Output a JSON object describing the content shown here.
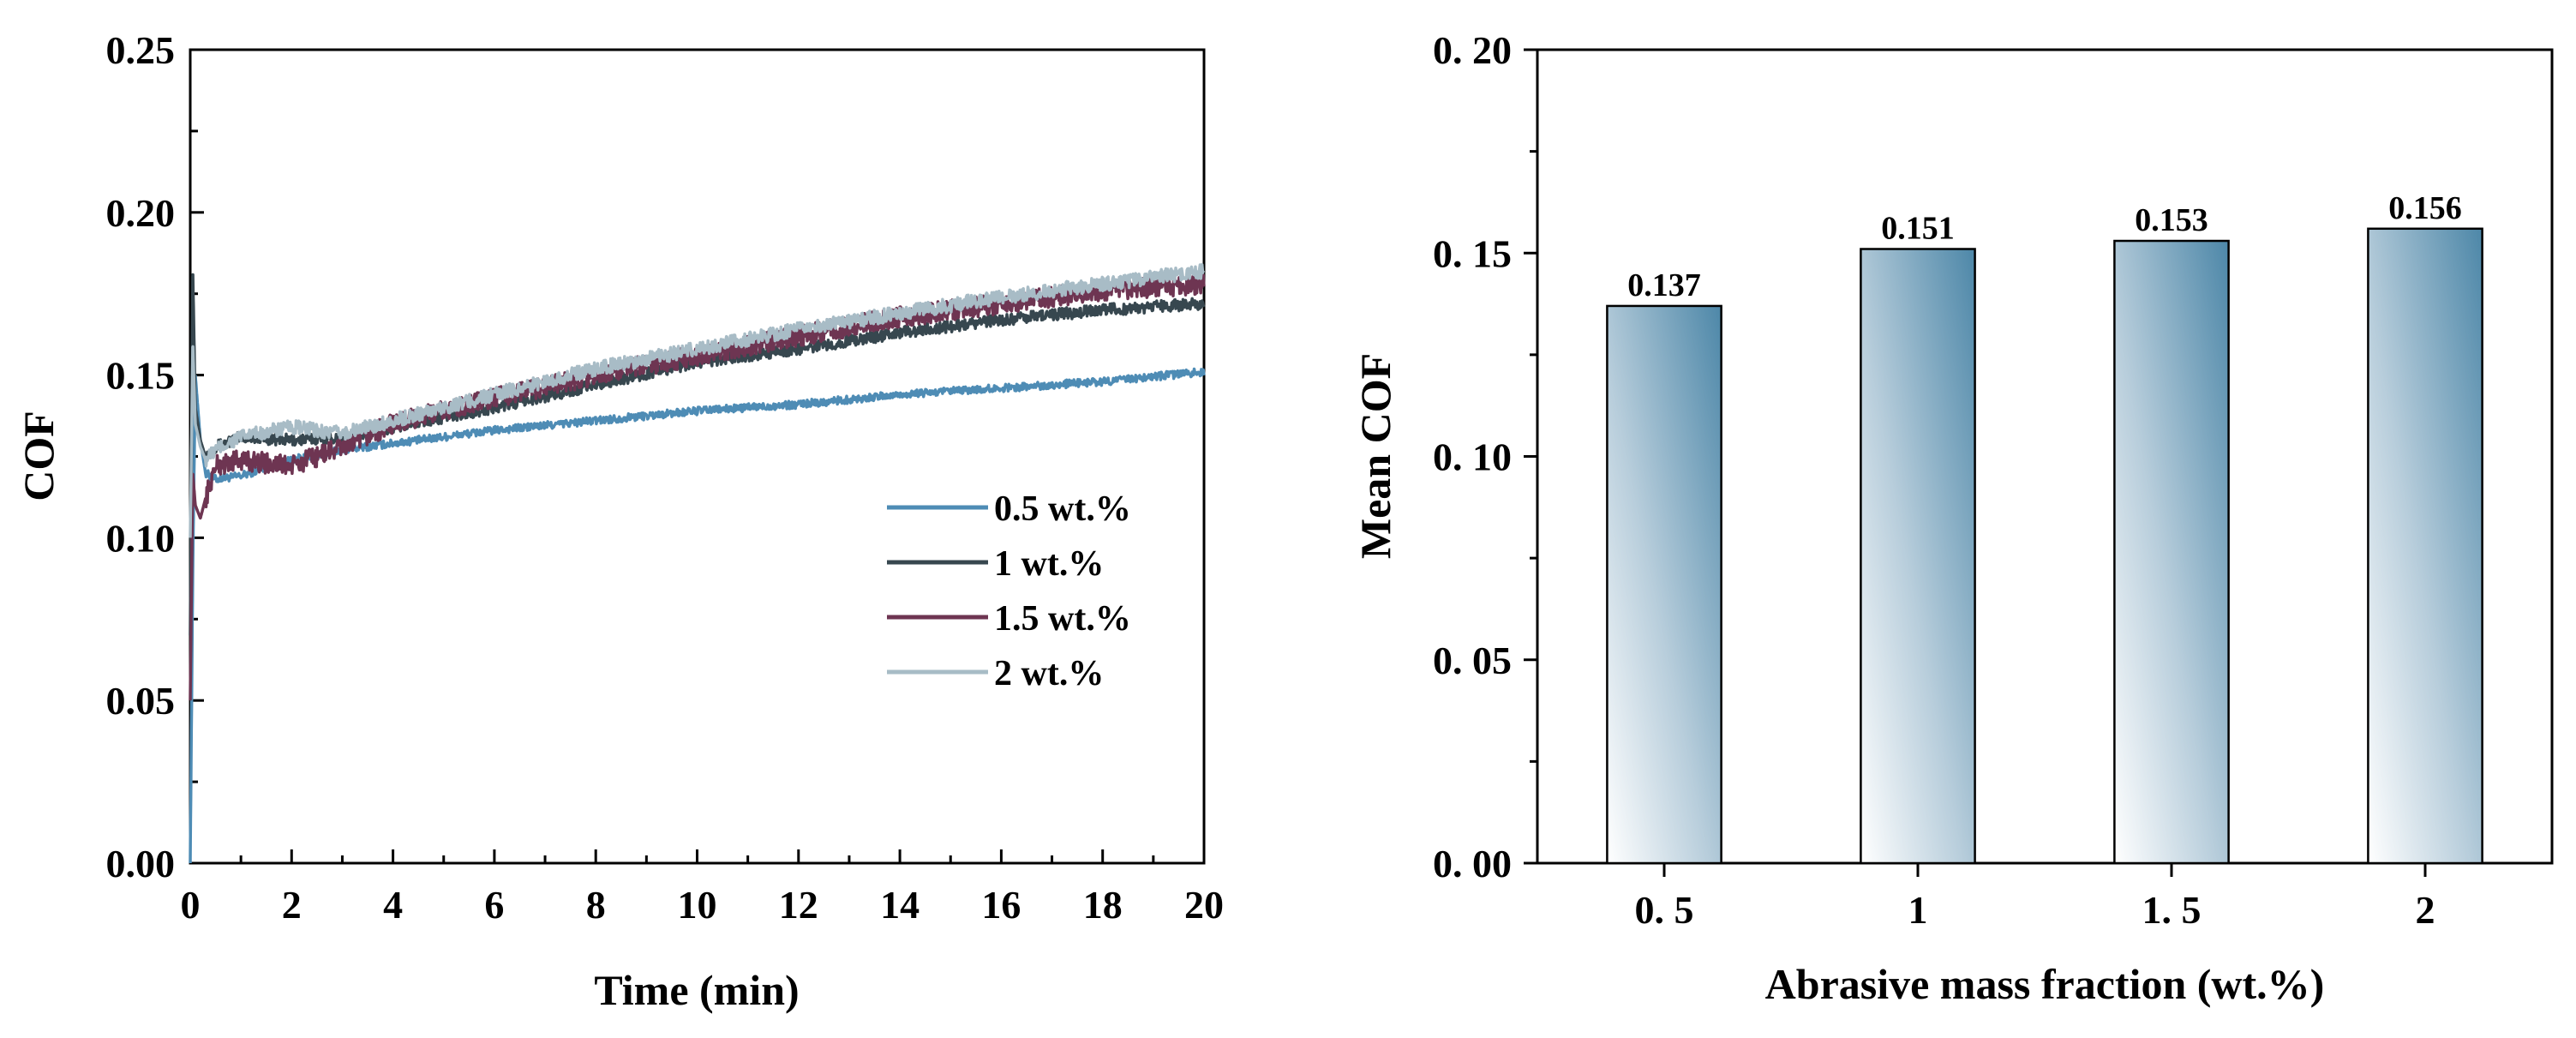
{
  "chart_data": [
    {
      "type": "line",
      "xlabel": "Time (min)",
      "ylabel": "COF",
      "xlim": [
        0,
        20
      ],
      "ylim": [
        0,
        0.25
      ],
      "x_ticks": [
        "0",
        "2",
        "4",
        "6",
        "8",
        "10",
        "12",
        "14",
        "16",
        "18",
        "20"
      ],
      "y_ticks": [
        "0.00",
        "0.05",
        "0.10",
        "0.15",
        "0.20",
        "0.25"
      ],
      "legend_position": "center-right",
      "series": [
        {
          "name": "0.5 wt.%",
          "color": "#4e8cb5",
          "x": [
            0,
            0.05,
            0.1,
            0.2,
            0.3,
            0.5,
            1,
            2,
            3,
            4,
            6,
            8,
            10,
            12,
            14,
            16,
            18,
            20
          ],
          "y": [
            0.0,
            0.09,
            0.15,
            0.13,
            0.12,
            0.118,
            0.119,
            0.124,
            0.127,
            0.129,
            0.133,
            0.136,
            0.139,
            0.141,
            0.144,
            0.146,
            0.148,
            0.151
          ]
        },
        {
          "name": "1 wt.%",
          "color": "#37474f",
          "x": [
            0,
            0.05,
            0.1,
            0.2,
            0.3,
            0.5,
            1,
            2,
            3,
            4,
            6,
            8,
            10,
            12,
            14,
            16,
            18,
            20
          ],
          "y": [
            0.07,
            0.183,
            0.14,
            0.13,
            0.125,
            0.128,
            0.131,
            0.13,
            0.131,
            0.134,
            0.14,
            0.147,
            0.154,
            0.158,
            0.163,
            0.167,
            0.17,
            0.172
          ]
        },
        {
          "name": "1.5 wt.%",
          "color": "#6e3552",
          "x": [
            0,
            0.05,
            0.1,
            0.2,
            0.3,
            0.5,
            1,
            2,
            3,
            4,
            6,
            8,
            10,
            12,
            14,
            16,
            18,
            20
          ],
          "y": [
            0.05,
            0.12,
            0.11,
            0.106,
            0.112,
            0.122,
            0.124,
            0.122,
            0.128,
            0.135,
            0.143,
            0.15,
            0.156,
            0.162,
            0.168,
            0.172,
            0.176,
            0.178
          ]
        },
        {
          "name": "2 wt.%",
          "color": "#a8bcc6",
          "x": [
            0,
            0.05,
            0.1,
            0.2,
            0.3,
            0.5,
            1,
            2,
            3,
            4,
            6,
            8,
            10,
            12,
            14,
            16,
            18,
            20
          ],
          "y": [
            0.1,
            0.16,
            0.135,
            0.128,
            0.124,
            0.127,
            0.131,
            0.134,
            0.132,
            0.136,
            0.144,
            0.152,
            0.158,
            0.164,
            0.169,
            0.174,
            0.178,
            0.182
          ]
        }
      ]
    },
    {
      "type": "bar",
      "xlabel": "Abrasive mass fraction (wt.%)",
      "ylabel": "Mean COF",
      "categories": [
        "0. 5",
        "1",
        "1. 5",
        "2"
      ],
      "values": [
        0.137,
        0.151,
        0.153,
        0.156
      ],
      "data_labels": [
        "0.137",
        "0.151",
        "0.153",
        "0.156"
      ],
      "ylim": [
        0,
        0.2
      ],
      "y_ticks": [
        "0. 00",
        "0. 05",
        "0. 10",
        "0. 15",
        "0. 20"
      ],
      "bar_gradient": [
        "#ffffff",
        "#4d87a8"
      ]
    }
  ]
}
